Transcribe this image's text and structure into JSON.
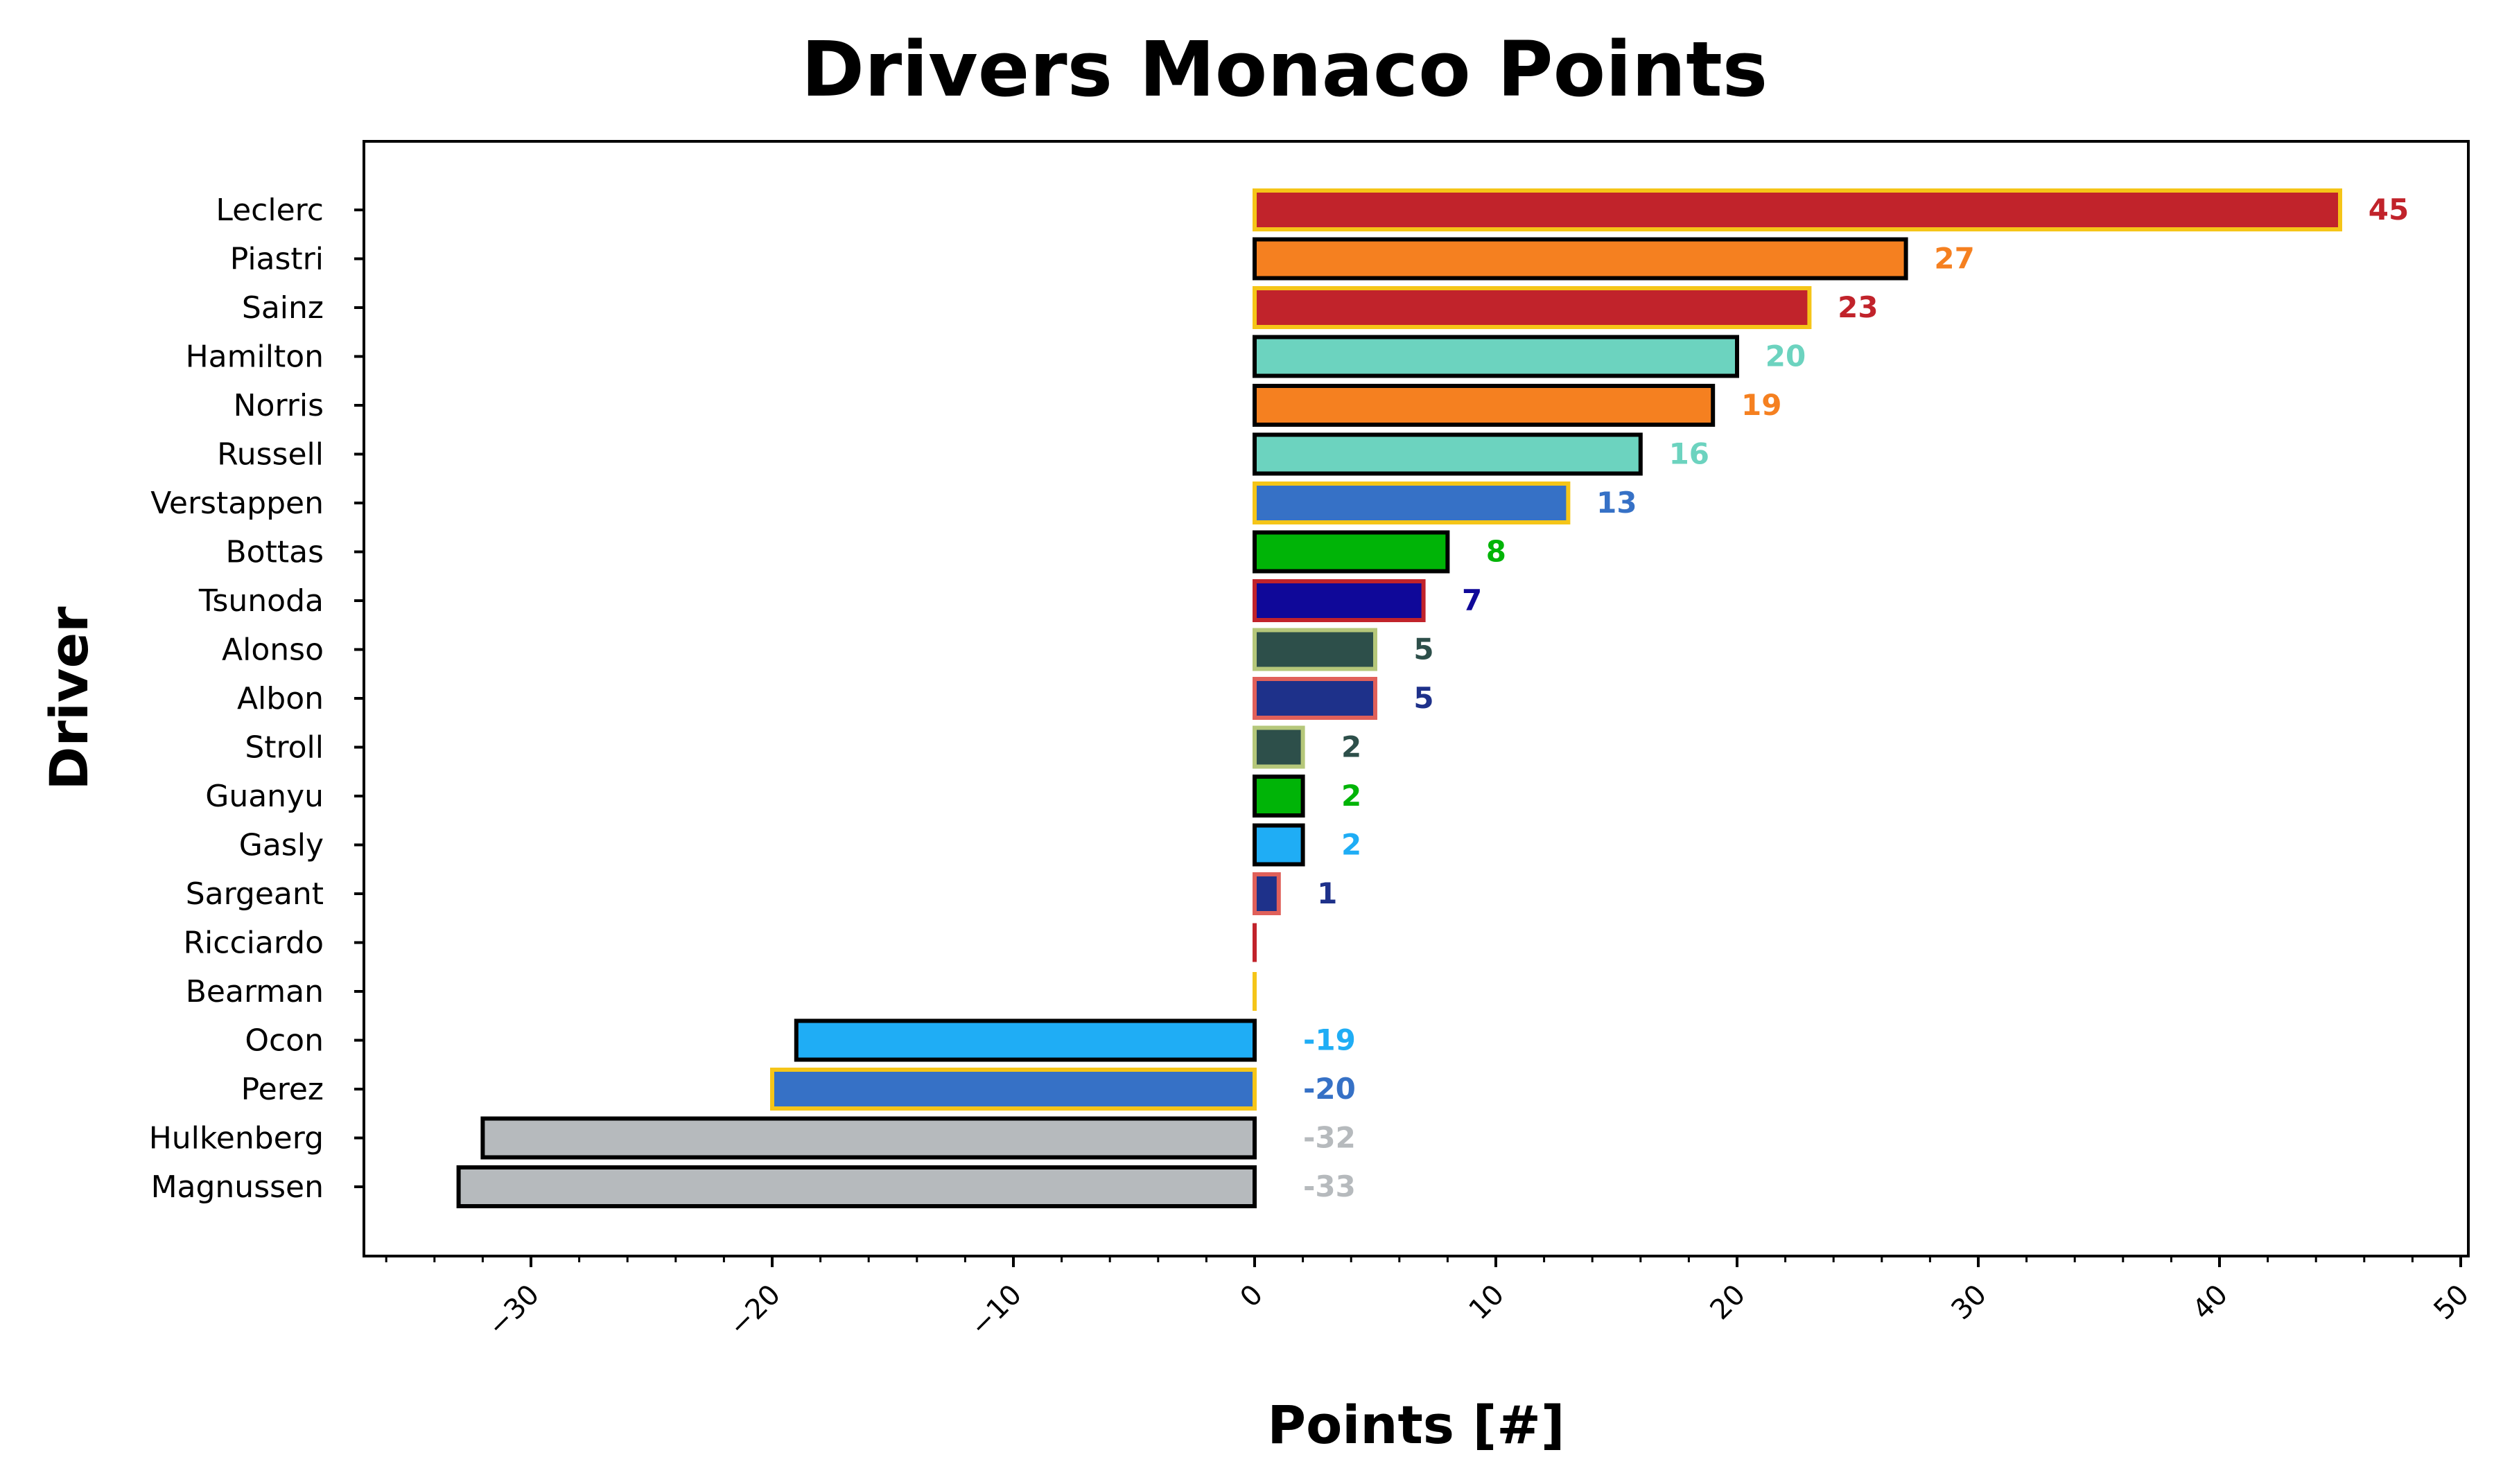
{
  "chart_data": {
    "type": "bar",
    "orientation": "horizontal",
    "title": "Drivers Monaco Points",
    "xlabel": "Points [#]",
    "ylabel": "Driver",
    "xlim": [
      -37,
      50
    ],
    "xticks": [
      -30,
      -20,
      -10,
      0,
      10,
      20,
      30,
      40,
      50
    ],
    "xtick_labels": [
      "−30",
      "−20",
      "−10",
      "0",
      "10",
      "20",
      "30",
      "40",
      "50"
    ],
    "grid": false,
    "bars": [
      {
        "driver": "Leclerc",
        "value": 45,
        "label": "45",
        "fill": "#C1232B",
        "edge": "#F5C518"
      },
      {
        "driver": "Piastri",
        "value": 27,
        "label": "27",
        "fill": "#F58020",
        "edge": "#000000"
      },
      {
        "driver": "Sainz",
        "value": 23,
        "label": "23",
        "fill": "#C1232B",
        "edge": "#F5C518"
      },
      {
        "driver": "Hamilton",
        "value": 20,
        "label": "20",
        "fill": "#6CD3BF",
        "edge": "#000000"
      },
      {
        "driver": "Norris",
        "value": 19,
        "label": "19",
        "fill": "#F58020",
        "edge": "#000000"
      },
      {
        "driver": "Russell",
        "value": 16,
        "label": "16",
        "fill": "#6CD3BF",
        "edge": "#000000"
      },
      {
        "driver": "Verstappen",
        "value": 13,
        "label": "13",
        "fill": "#3671C6",
        "edge": "#F5C518"
      },
      {
        "driver": "Bottas",
        "value": 8,
        "label": "8",
        "fill": "#00B407",
        "edge": "#000000"
      },
      {
        "driver": "Tsunoda",
        "value": 7,
        "label": "7",
        "fill": "#0F0899",
        "edge": "#C1232B"
      },
      {
        "driver": "Alonso",
        "value": 5,
        "label": "5",
        "fill": "#2D4F4A",
        "edge": "#B5C77A"
      },
      {
        "driver": "Albon",
        "value": 5,
        "label": "5",
        "fill": "#1E318A",
        "edge": "#E0605A"
      },
      {
        "driver": "Stroll",
        "value": 2,
        "label": "2",
        "fill": "#2D4F4A",
        "edge": "#B5C77A"
      },
      {
        "driver": "Guanyu",
        "value": 2,
        "label": "2",
        "fill": "#00B407",
        "edge": "#000000"
      },
      {
        "driver": "Gasly",
        "value": 2,
        "label": "2",
        "fill": "#1FADF5",
        "edge": "#000000"
      },
      {
        "driver": "Sargeant",
        "value": 1,
        "label": "1",
        "fill": "#1E318A",
        "edge": "#E0605A"
      },
      {
        "driver": "Ricciardo",
        "value": 0,
        "label": "",
        "fill": "#0F0899",
        "edge": "#C1232B"
      },
      {
        "driver": "Bearman",
        "value": 0,
        "label": "",
        "fill": "#C1232B",
        "edge": "#F5C518"
      },
      {
        "driver": "Ocon",
        "value": -19,
        "label": "-19",
        "fill": "#1FADF5",
        "edge": "#000000"
      },
      {
        "driver": "Perez",
        "value": -20,
        "label": "-20",
        "fill": "#3671C6",
        "edge": "#F5C518"
      },
      {
        "driver": "Hulkenberg",
        "value": -32,
        "label": "-32",
        "fill": "#B6BABD",
        "edge": "#000000"
      },
      {
        "driver": "Magnussen",
        "value": -33,
        "label": "-33",
        "fill": "#B6BABD",
        "edge": "#000000"
      }
    ]
  }
}
